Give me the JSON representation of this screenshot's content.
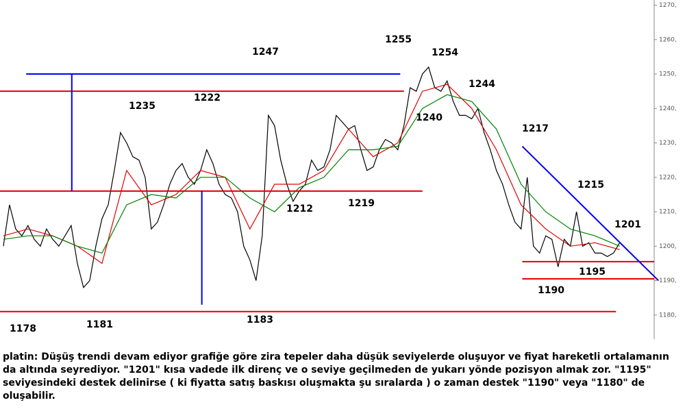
{
  "chart_data": {
    "type": "line",
    "xlim": [
      -0.55,
      105.6
    ],
    "ylim": [
      1173,
      1271.5
    ],
    "yticks": [
      {
        "value": 1180,
        "label": "1180,"
      },
      {
        "value": 1190,
        "label": "1190,"
      },
      {
        "value": 1200,
        "label": "1200,"
      },
      {
        "value": 1210,
        "label": "1210,"
      },
      {
        "value": 1220,
        "label": "1220,"
      },
      {
        "value": 1230,
        "label": "1230,"
      },
      {
        "value": 1240,
        "label": "1240,"
      },
      {
        "value": 1250,
        "label": "1250,"
      },
      {
        "value": 1260,
        "label": "1260,"
      },
      {
        "value": 1270,
        "label": "1270,"
      }
    ],
    "price": {
      "color": "#000000",
      "values": [
        1200,
        1212,
        1205,
        1203,
        1206,
        1202,
        1200,
        1205,
        1202,
        1200,
        1203,
        1206,
        1195,
        1188,
        1190,
        1200,
        1208,
        1212,
        1222,
        1233,
        1230,
        1226,
        1225,
        1220,
        1205,
        1207,
        1212,
        1218,
        1222,
        1224,
        1220,
        1218,
        1222,
        1228,
        1224,
        1218,
        1215,
        1214,
        1210,
        1200,
        1196,
        1190,
        1203,
        1238,
        1235,
        1225,
        1218,
        1213,
        1216,
        1218,
        1225,
        1222,
        1223,
        1228,
        1238,
        1236,
        1234,
        1235,
        1228,
        1222,
        1223,
        1228,
        1231,
        1230,
        1228,
        1235,
        1246,
        1245,
        1250,
        1252,
        1246,
        1245,
        1248,
        1242,
        1238,
        1238,
        1237,
        1240,
        1233,
        1228,
        1222,
        1218,
        1212,
        1207,
        1205,
        1220,
        1200,
        1198,
        1203,
        1202,
        1194,
        1202,
        1200,
        1210,
        1200,
        1201,
        1198,
        1198,
        1197,
        1198,
        1201
      ]
    },
    "ma_fast": {
      "color": "#e00000",
      "x": [
        0,
        4,
        8,
        12,
        16,
        20,
        24,
        28,
        32,
        36,
        40,
        44,
        48,
        52,
        56,
        60,
        64,
        68,
        72,
        76,
        80,
        84,
        88,
        92,
        96,
        100
      ],
      "values": [
        1203,
        1205,
        1203,
        1200,
        1195,
        1222,
        1212,
        1215,
        1222,
        1220,
        1205,
        1218,
        1218,
        1222,
        1234,
        1226,
        1230,
        1245,
        1247,
        1240,
        1228,
        1212,
        1205,
        1200,
        1201,
        1199
      ]
    },
    "ma_slow": {
      "color": "#008000",
      "x": [
        0,
        4,
        8,
        12,
        16,
        20,
        24,
        28,
        32,
        36,
        40,
        44,
        48,
        52,
        56,
        60,
        64,
        68,
        72,
        76,
        80,
        84,
        88,
        92,
        96,
        100
      ],
      "values": [
        1202,
        1203,
        1203,
        1200,
        1198,
        1212,
        1215,
        1214,
        1220,
        1220,
        1214,
        1210,
        1217,
        1220,
        1228,
        1228,
        1229,
        1240,
        1244,
        1242,
        1234,
        1218,
        1210,
        1205,
        1203,
        1200
      ]
    },
    "lines": [
      {
        "color": "#e00000",
        "x": [
          -0.55,
          65
        ],
        "y": [
          1245,
          1245
        ]
      },
      {
        "color": "#e00000",
        "x": [
          -0.55,
          68
        ],
        "y": [
          1216,
          1216
        ]
      },
      {
        "color": "#e00000",
        "x": [
          -0.55,
          99.4
        ],
        "y": [
          1181,
          1181
        ]
      },
      {
        "color": "#e00000",
        "x": [
          84.2,
          105.6
        ],
        "y": [
          1195.5,
          1195.5
        ]
      },
      {
        "color": "#e00000",
        "x": [
          84.2,
          105.6
        ],
        "y": [
          1190.5,
          1190.5
        ]
      },
      {
        "color": "#0000ee",
        "x": [
          3.7,
          64.4
        ],
        "y": [
          1250,
          1250
        ]
      },
      {
        "color": "#0000ee",
        "x": [
          11.1,
          11.1
        ],
        "y": [
          1250,
          1216
        ]
      },
      {
        "color": "#0000ee",
        "x": [
          32.2,
          32.2
        ],
        "y": [
          1216,
          1183
        ]
      },
      {
        "color": "#0000ee",
        "x": [
          84.2,
          106.3
        ],
        "y": [
          1229,
          1190
        ]
      }
    ],
    "annotations": [
      "1178",
      "1181",
      "1183",
      "1235",
      "1222",
      "1247",
      "1212",
      "1219",
      "1255",
      "1254",
      "1240",
      "1244",
      "1217",
      "1215",
      "1201",
      "1195",
      "1190"
    ],
    "caption": "platin: Düşüş trendi devam ediyor grafiğe göre zira tepeler daha düşük seviyelerde oluşuyor ve fiyat hareketli ortalamanın da altında seyrediyor. \"1201\" kısa vadede ilk direnç ve o seviye geçilmeden de yukarı yönde pozisyon almak zor. \"1195\" seviyesindeki destek delinirse ( ki fiyatta satış baskısı oluşmakta şu sıralarda ) o zaman destek \"1190\" veya \"1180\" de oluşabilir."
  }
}
